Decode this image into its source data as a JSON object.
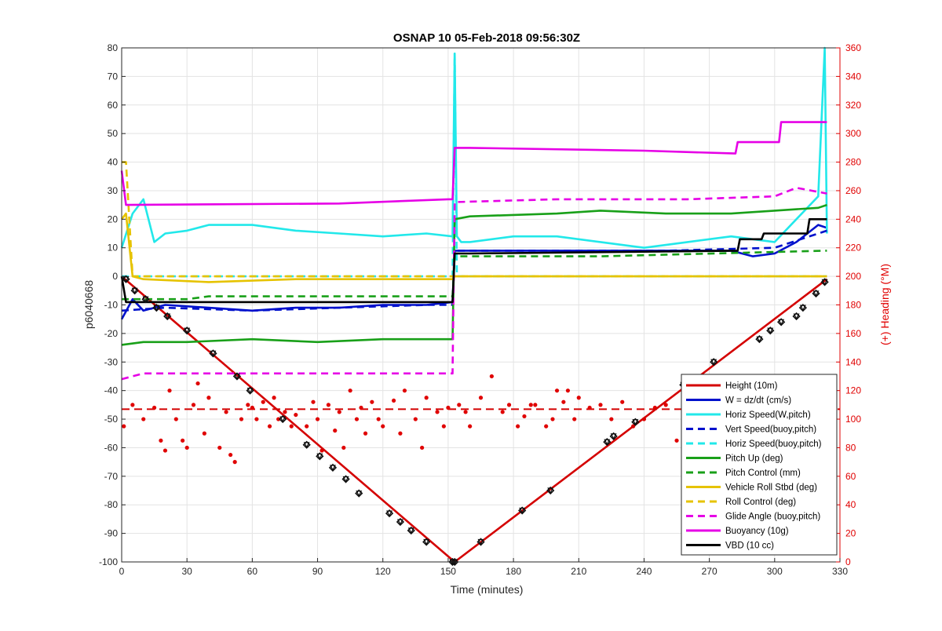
{
  "chart_data": {
    "type": "line",
    "title": "OSNAP 10 05-Feb-2018 09:56:30Z",
    "xlabel": "Time (minutes)",
    "ylabel": "p6040668",
    "ylabel_right": "(+) Heading (°M)",
    "xlim": [
      0,
      330
    ],
    "ylim": [
      -100,
      80
    ],
    "ylim_right": [
      0,
      360
    ],
    "xticks": [
      "0",
      "30",
      "60",
      "90",
      "120",
      "150",
      "180",
      "210",
      "240",
      "270",
      "300",
      "330"
    ],
    "yticks": [
      "80",
      "70",
      "60",
      "50",
      "40",
      "30",
      "20",
      "10",
      "0",
      "-10",
      "-20",
      "-30",
      "-40",
      "-50",
      "-60",
      "-70",
      "-80",
      "-90",
      "-100"
    ],
    "yticks_right": [
      "360",
      "340",
      "320",
      "300",
      "280",
      "260",
      "240",
      "220",
      "200",
      "180",
      "160",
      "140",
      "120",
      "100",
      "80",
      "60",
      "40",
      "20",
      "0"
    ],
    "grid": true,
    "legend_position": "bottom-right",
    "colors": {
      "height": "#d40000",
      "w": "#0011cc",
      "horiz_speed": "#22e8ea",
      "pitch": "#19a019",
      "roll": "#e6c300",
      "glide": "#e600e6",
      "buoyancy": "#e600e6",
      "vbd": "#000000",
      "heading_axis": "#e00000"
    },
    "series": [
      {
        "name": "Height (10m)",
        "style": "solid",
        "color": "#d40000",
        "x": [
          0,
          153,
          324
        ],
        "y": [
          0,
          -100,
          -1
        ]
      },
      {
        "name": "W = dz/dt (cm/s)",
        "style": "solid",
        "color": "#0011cc",
        "x": [
          0,
          5,
          10,
          20,
          40,
          60,
          80,
          100,
          120,
          140,
          152,
          153,
          160,
          180,
          200,
          220,
          240,
          260,
          280,
          290,
          300,
          310,
          320,
          324
        ],
        "y": [
          -15,
          -8,
          -12,
          -10,
          -11,
          -12,
          -11,
          -11,
          -10,
          -10,
          -9,
          9,
          9,
          9,
          9,
          9,
          9,
          9,
          9,
          7,
          8,
          12,
          18,
          17
        ]
      },
      {
        "name": "Horiz Speed(W,pitch)",
        "style": "solid",
        "color": "#22e8ea",
        "x": [
          0,
          5,
          10,
          15,
          20,
          30,
          40,
          60,
          80,
          100,
          120,
          140,
          152,
          153,
          154,
          156,
          160,
          180,
          200,
          220,
          240,
          260,
          280,
          300,
          310,
          320,
          323,
          324
        ],
        "y": [
          10,
          22,
          27,
          12,
          15,
          16,
          18,
          18,
          16,
          15,
          14,
          15,
          14,
          78,
          14,
          12,
          12,
          14,
          14,
          12,
          10,
          12,
          14,
          12,
          20,
          28,
          80,
          15
        ]
      },
      {
        "name": "Vert Speed(buoy,pitch)",
        "style": "dashed",
        "color": "#0011cc",
        "x": [
          0,
          20,
          60,
          100,
          140,
          152,
          153,
          200,
          250,
          300,
          324
        ],
        "y": [
          -12,
          -11,
          -12,
          -11,
          -10,
          -10,
          9,
          9,
          9,
          10,
          16
        ]
      },
      {
        "name": "Horiz Speed(buoy,pitch)",
        "style": "dashed",
        "color": "#22e8ea",
        "x": [
          0,
          150,
          152,
          153,
          154,
          324
        ],
        "y": [
          0,
          0,
          0,
          78,
          0,
          0
        ]
      },
      {
        "name": "Pitch Up (deg)",
        "style": "solid",
        "color": "#19a019",
        "x": [
          0,
          10,
          30,
          60,
          90,
          120,
          150,
          152,
          153,
          160,
          200,
          220,
          250,
          280,
          300,
          320,
          324
        ],
        "y": [
          -24,
          -23,
          -23,
          -22,
          -23,
          -22,
          -22,
          -22,
          20,
          21,
          22,
          23,
          22,
          22,
          23,
          24,
          25
        ]
      },
      {
        "name": "Pitch Control (mm)",
        "style": "dashed",
        "color": "#19a019",
        "x": [
          0,
          30,
          40,
          152,
          153,
          220,
          324
        ],
        "y": [
          -8,
          -8,
          -7,
          -7,
          7,
          7,
          9
        ]
      },
      {
        "name": "Vehicle Roll Stbd (deg)",
        "style": "solid",
        "color": "#e6c300",
        "x": [
          0,
          2,
          5,
          10,
          40,
          80,
          120,
          150,
          152,
          153,
          200,
          250,
          300,
          324
        ],
        "y": [
          20,
          22,
          0,
          -1,
          -2,
          -1,
          -1,
          -1,
          -1,
          0,
          0,
          0,
          0,
          0
        ]
      },
      {
        "name": "Roll Control (deg)",
        "style": "dashed",
        "color": "#e6c300",
        "x": [
          0,
          2,
          5,
          10,
          152,
          153,
          324
        ],
        "y": [
          40,
          40,
          0,
          0,
          0,
          0,
          0
        ]
      },
      {
        "name": "Glide Angle (buoy,pitch)",
        "style": "dashed",
        "color": "#e600e6",
        "x": [
          0,
          10,
          60,
          100,
          150,
          152,
          153,
          200,
          260,
          300,
          310,
          324
        ],
        "y": [
          -36,
          -34,
          -34,
          -34,
          -34,
          -34,
          26,
          27,
          27,
          28,
          31,
          29
        ]
      },
      {
        "name": "Buoyancy (10g)",
        "style": "solid",
        "color": "#e600e6",
        "x": [
          0,
          2,
          100,
          150,
          152,
          153,
          160,
          240,
          282,
          283,
          302,
          303,
          324
        ],
        "y": [
          37,
          25,
          25.5,
          27,
          27,
          45,
          45,
          44,
          43,
          47,
          47,
          54,
          54
        ]
      },
      {
        "name": "VBD (10 cc)",
        "style": "solid",
        "color": "#000000",
        "x": [
          0,
          2,
          152,
          153,
          160,
          283,
          284,
          294,
          295,
          315,
          316,
          324
        ],
        "y": [
          0,
          -9,
          -9,
          8,
          8,
          9,
          13,
          13,
          15,
          15,
          20,
          20
        ]
      }
    ],
    "height_markers": {
      "x": [
        2,
        6,
        11,
        16,
        21,
        30,
        42,
        53,
        59,
        74,
        85,
        91,
        97,
        103,
        109,
        123,
        128,
        133,
        140,
        152,
        153,
        165,
        184,
        197,
        223,
        226,
        236,
        258,
        272,
        293,
        298,
        303,
        310,
        313,
        319,
        323
      ],
      "y": [
        -1,
        -5,
        -8,
        -11,
        -14,
        -19,
        -27,
        -35,
        -40,
        -50,
        -59,
        -63,
        -67,
        -71,
        -76,
        -83,
        -86,
        -89,
        -93,
        -100,
        -100,
        -93,
        -82,
        -75,
        -58,
        -56,
        -51,
        -38,
        -30,
        -22,
        -19,
        -16,
        -14,
        -11,
        -6,
        -2
      ]
    },
    "heading_dashed_level": 107,
    "heading_points": {
      "x": [
        1,
        5,
        10,
        15,
        18,
        20,
        22,
        25,
        28,
        30,
        33,
        35,
        38,
        40,
        45,
        48,
        50,
        52,
        55,
        58,
        60,
        62,
        65,
        68,
        70,
        72,
        75,
        78,
        80,
        85,
        88,
        90,
        92,
        95,
        98,
        100,
        102,
        105,
        108,
        110,
        112,
        115,
        118,
        120,
        125,
        128,
        130,
        135,
        138,
        140,
        145,
        148,
        150,
        155,
        158,
        160,
        165,
        170,
        175,
        178,
        182,
        185,
        188,
        190,
        195,
        198,
        200,
        203,
        205,
        208,
        210,
        215,
        220,
        225,
        230,
        235,
        240,
        245,
        250,
        255,
        260,
        265,
        270,
        275,
        280,
        285,
        290,
        293,
        296,
        300,
        302,
        305,
        308,
        310,
        312,
        315,
        318,
        320,
        322,
        324
      ],
      "y": [
        95,
        110,
        100,
        108,
        85,
        78,
        120,
        100,
        85,
        80,
        110,
        125,
        90,
        115,
        80,
        105,
        75,
        70,
        100,
        110,
        108,
        100,
        112,
        95,
        115,
        100,
        105,
        95,
        103,
        95,
        112,
        100,
        78,
        110,
        92,
        105,
        80,
        120,
        100,
        108,
        90,
        112,
        100,
        95,
        113,
        90,
        120,
        100,
        80,
        115,
        105,
        95,
        108,
        110,
        105,
        95,
        115,
        130,
        105,
        110,
        95,
        102,
        110,
        110,
        95,
        100,
        120,
        112,
        120,
        100,
        115,
        108,
        110,
        100,
        112,
        95,
        100,
        108,
        110,
        85,
        102,
        112,
        100,
        95,
        110,
        100,
        90,
        112,
        102,
        95,
        110,
        120,
        100,
        85,
        110,
        120,
        95,
        105,
        110,
        100
      ]
    }
  }
}
